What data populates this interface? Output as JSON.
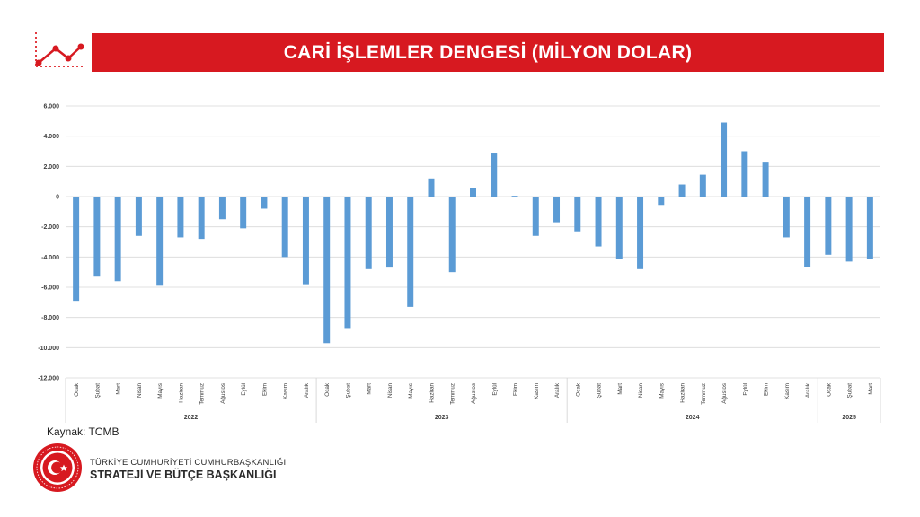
{
  "header": {
    "title": "CARİ İŞLEMLER DENGESİ (MİLYON DOLAR)"
  },
  "chart_data": {
    "type": "bar",
    "title": "CARİ İŞLEMLER DENGESİ (MİLYON DOLAR)",
    "xlabel": "",
    "ylabel": "",
    "ylim": [
      -12000,
      6000
    ],
    "yticks": [
      6000,
      4000,
      2000,
      0,
      -2000,
      -4000,
      -6000,
      -8000,
      -10000,
      -12000
    ],
    "ytick_labels": [
      "6.000",
      "4.000",
      "2.000",
      "0",
      "-2.000",
      "-4.000",
      "-6.000",
      "-8.000",
      "-10.000",
      "-12.000"
    ],
    "grid": true,
    "legend": "none",
    "bar_color": "#5b9bd5",
    "categories": [
      "Ocak",
      "Şubat",
      "Mart",
      "Nisan",
      "Mayıs",
      "Haziran",
      "Temmuz",
      "Ağustos",
      "Eylül",
      "Ekim",
      "Kasım",
      "Aralık",
      "Ocak",
      "Şubat",
      "Mart",
      "Nisan",
      "Mayıs",
      "Haziran",
      "Temmuz",
      "Ağustos",
      "Eylül",
      "Ekim",
      "Kasım",
      "Aralık",
      "Ocak",
      "Şubat",
      "Mart",
      "Nisan",
      "Mayıs",
      "Haziran",
      "Temmuz",
      "Ağustos",
      "Eylül",
      "Ekim",
      "Kasım",
      "Aralık",
      "Ocak",
      "Şubat",
      "Mart"
    ],
    "groups": [
      {
        "label": "2022",
        "count": 12
      },
      {
        "label": "2023",
        "count": 12
      },
      {
        "label": "2024",
        "count": 12
      },
      {
        "label": "2025",
        "count": 3
      }
    ],
    "values": [
      -6900,
      -5300,
      -5600,
      -2600,
      -5900,
      -2700,
      -2800,
      -1500,
      -2100,
      -800,
      -4000,
      -5800,
      -9700,
      -8700,
      -4800,
      -4700,
      -7300,
      1200,
      -5000,
      550,
      2850,
      50,
      -2600,
      -1700,
      -2300,
      -3300,
      -4100,
      -4800,
      -550,
      800,
      1450,
      4900,
      3000,
      2250,
      -2700,
      -4650,
      -3850,
      -4300,
      -4100
    ]
  },
  "footer": {
    "source": "Kaynak: TCMB",
    "org_line1": "TÜRKİYE CUMHURİYETİ CUMHURBAŞKANLIĞI",
    "org_line2": "STRATEJİ VE BÜTÇE BAŞKANLIĞI",
    "logo_ring_text": "T.C. CUMHURBAŞKANLIĞI STRATEJİ VE BÜTÇE BAŞKANLIĞI"
  },
  "colors": {
    "accent": "#d71920",
    "bar": "#5b9bd5",
    "grid": "#d9d9d9"
  }
}
